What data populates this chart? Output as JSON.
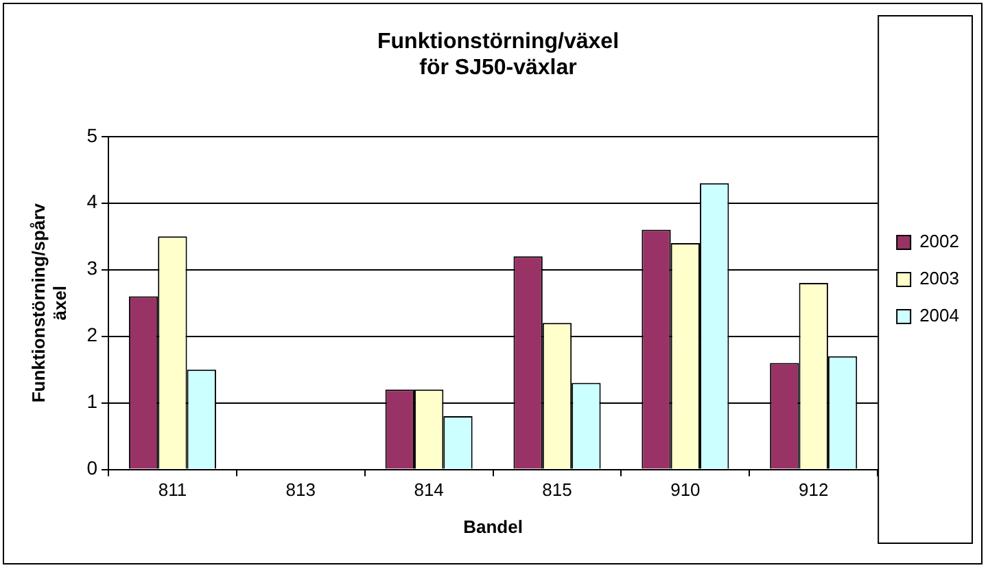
{
  "chart_data": {
    "type": "bar",
    "title": "Funktionstörning/växel\nför SJ50-växlar",
    "xlabel": "Bandel",
    "ylabel": "Funktionstörning/spårv\näxel",
    "categories": [
      "811",
      "813",
      "814",
      "815",
      "910",
      "912"
    ],
    "series": [
      {
        "name": "2002",
        "color": "#993366",
        "values": [
          2.6,
          null,
          1.2,
          3.2,
          3.6,
          1.6
        ]
      },
      {
        "name": "2003",
        "color": "#ffffcc",
        "values": [
          3.5,
          null,
          1.2,
          2.2,
          3.4,
          2.8
        ]
      },
      {
        "name": "2004",
        "color": "#ccffff",
        "values": [
          1.5,
          null,
          0.8,
          1.3,
          4.3,
          1.7
        ]
      }
    ],
    "ylim": [
      0,
      5
    ],
    "yticks": [
      0,
      1,
      2,
      3,
      4,
      5
    ],
    "grid": "y",
    "legend": "right"
  }
}
